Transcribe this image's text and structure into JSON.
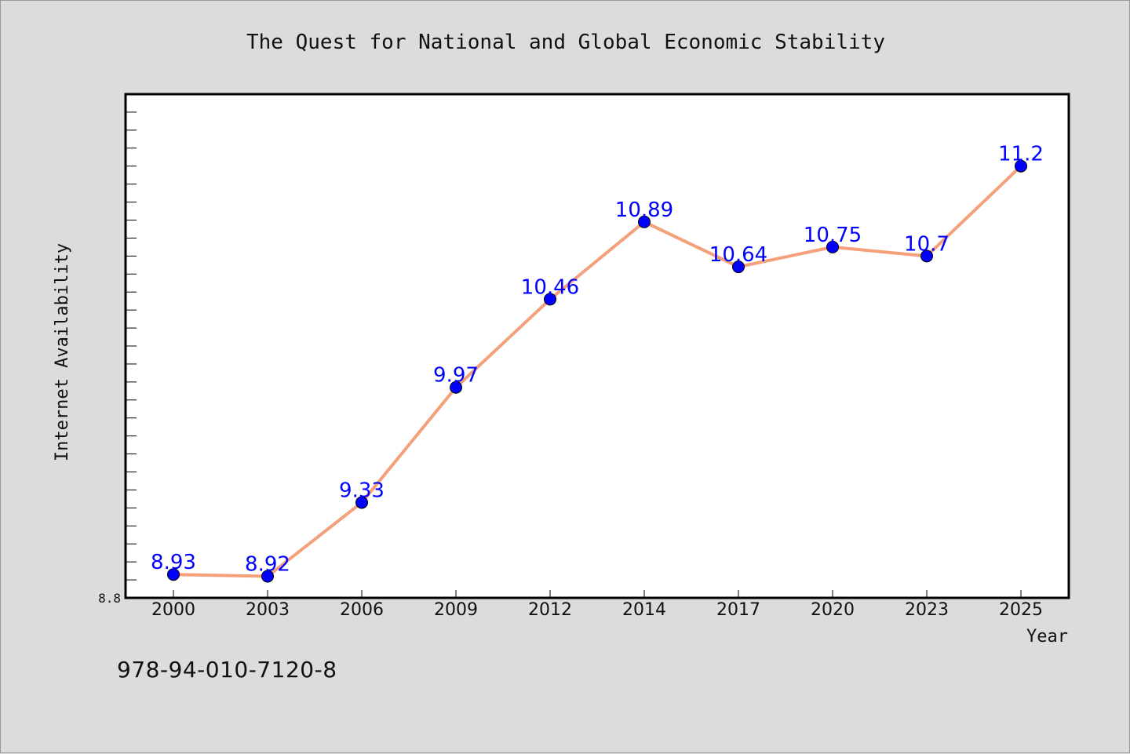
{
  "chart_data": {
    "type": "line",
    "title": "The Quest for National and Global Economic Stability",
    "xlabel": "Year",
    "ylabel": "Internet Availability",
    "categories": [
      "2000",
      "2003",
      "2006",
      "2009",
      "2012",
      "2014",
      "2017",
      "2020",
      "2023",
      "2025"
    ],
    "series": [
      {
        "values": [
          8.93,
          8.92,
          9.33,
          9.97,
          10.46,
          10.89,
          10.64,
          10.75,
          10.7,
          11.2
        ],
        "data_labels": [
          "8.93",
          "8.92",
          "9.33",
          "9.97",
          "10.46",
          "10.89",
          "10.64",
          "10.75",
          "10.7",
          "11.2"
        ]
      }
    ],
    "ylim": [
      8.8,
      11.6
    ],
    "y_tick_labels": [
      "8.8"
    ],
    "grid": false,
    "legend": "none",
    "colors": {
      "line": "#f4a07a",
      "marker": "#0000ff",
      "label": "#0000ff",
      "background": "#dcdcdc",
      "plot_background": "#ffffff"
    }
  },
  "footer": {
    "isbn": "978-94-010-7120-8"
  }
}
